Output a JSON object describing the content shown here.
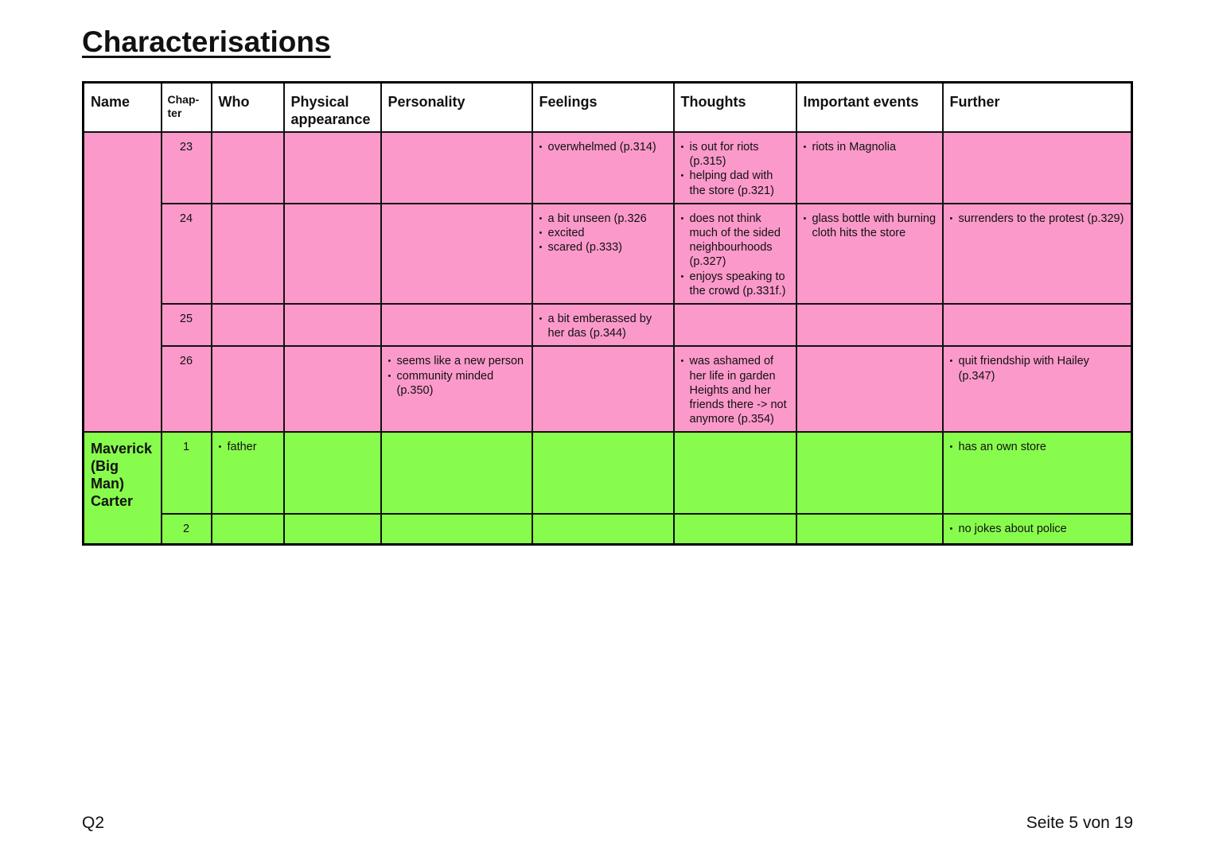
{
  "title": "Characterisations",
  "headers": {
    "name": "Name",
    "chapter": "Chap-ter",
    "who": "Who",
    "physical": "Physical appearance",
    "personality": "Personality",
    "feelings": "Feelings",
    "thoughts": "Thoughts",
    "events": "Important events",
    "further": "Further"
  },
  "pink_rows": [
    {
      "chapter": "23",
      "feelings": [
        "overwhelmed (p.314)"
      ],
      "thoughts": [
        "is out for riots (p.315)",
        "helping dad with the store (p.321)"
      ],
      "events": [
        "riots in Magnolia"
      ]
    },
    {
      "chapter": "24",
      "feelings": [
        "a bit unseen (p.326",
        "excited",
        "scared (p.333)"
      ],
      "thoughts": [
        "does not think much of the sided neighbourhoods (p.327)",
        "enjoys speaking to the crowd (p.331f.)"
      ],
      "events": [
        "glass bottle with burning cloth hits the store"
      ],
      "further": [
        "surrenders to the protest (p.329)"
      ]
    },
    {
      "chapter": "25",
      "feelings": [
        "a bit emberassed by her das (p.344)"
      ]
    },
    {
      "chapter": "26",
      "personality": [
        "seems like a new person",
        "community minded (p.350)"
      ],
      "thoughts": [
        "was ashamed of her life in garden Heights and her friends there -> not anymore (p.354)"
      ],
      "further": [
        "quit friendship with Hailey (p.347)"
      ]
    }
  ],
  "green": {
    "name": "Maverick (Big Man) Carter",
    "rows": [
      {
        "chapter": "1",
        "who": [
          "father"
        ],
        "further": [
          "has an own store"
        ]
      },
      {
        "chapter": "2",
        "further": [
          "no jokes about police"
        ]
      }
    ]
  },
  "footer": {
    "left": "Q2",
    "right": "Seite 5 von 19"
  },
  "colors": {
    "pink": "#fc99cb",
    "green": "#88fc4d"
  }
}
